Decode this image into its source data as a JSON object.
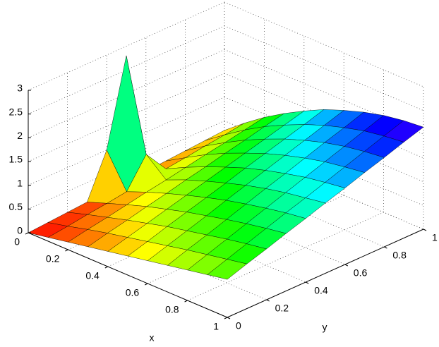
{
  "chart_data": {
    "type": "surface",
    "xlabel": "x",
    "ylabel": "y",
    "x": [
      0,
      0.1,
      0.2,
      0.3,
      0.4,
      0.5,
      0.6,
      0.7,
      0.8,
      0.9,
      1
    ],
    "y": [
      0,
      0.1,
      0.2,
      0.3,
      0.4,
      0.5,
      0.6,
      0.7,
      0.8,
      0.9,
      1
    ],
    "z": [
      [
        0,
        0.03,
        0.06,
        0.09,
        1.0,
        2.8,
        0.18,
        0.21,
        0.24,
        0.27,
        0.3
      ],
      [
        0.08,
        0.13,
        0.19,
        0.24,
        0.3,
        0.9,
        0.41,
        0.46,
        0.52,
        0.57,
        0.63
      ],
      [
        0.16,
        0.24,
        0.31,
        0.39,
        0.47,
        0.54,
        0.62,
        0.7,
        0.77,
        0.85,
        0.93
      ],
      [
        0.24,
        0.34,
        0.43,
        0.53,
        0.62,
        0.72,
        0.81,
        0.91,
        1.0,
        1.1,
        1.19
      ],
      [
        0.32,
        0.43,
        0.54,
        0.65,
        0.76,
        0.87,
        0.98,
        1.09,
        1.2,
        1.31,
        1.42
      ],
      [
        0.4,
        0.52,
        0.65,
        0.77,
        0.89,
        1.01,
        1.14,
        1.26,
        1.38,
        1.5,
        1.63
      ],
      [
        0.48,
        0.61,
        0.74,
        0.87,
        1.01,
        1.14,
        1.27,
        1.4,
        1.53,
        1.66,
        1.79
      ],
      [
        0.56,
        0.7,
        0.83,
        0.97,
        1.11,
        1.25,
        1.38,
        1.52,
        1.66,
        1.79,
        1.93
      ],
      [
        0.64,
        0.78,
        0.92,
        1.06,
        1.2,
        1.34,
        1.48,
        1.62,
        1.76,
        1.9,
        2.04
      ],
      [
        0.72,
        0.86,
        1.0,
        1.14,
        1.28,
        1.41,
        1.55,
        1.69,
        1.83,
        1.97,
        2.11
      ],
      [
        0.8,
        0.94,
        1.07,
        1.21,
        1.34,
        1.48,
        1.61,
        1.75,
        1.88,
        2.02,
        2.15
      ]
    ],
    "colormap": "hsv",
    "xlim": [
      0,
      1
    ],
    "ylim": [
      0,
      1
    ],
    "zlim": [
      0,
      3
    ],
    "xticks": [
      0,
      0.2,
      0.4,
      0.6,
      0.8,
      1
    ],
    "yticks": [
      0,
      0.2,
      0.4,
      0.6,
      0.8,
      1
    ],
    "zticks": [
      0,
      0.5,
      1,
      1.5,
      2,
      2.5,
      3
    ],
    "grid": true
  }
}
